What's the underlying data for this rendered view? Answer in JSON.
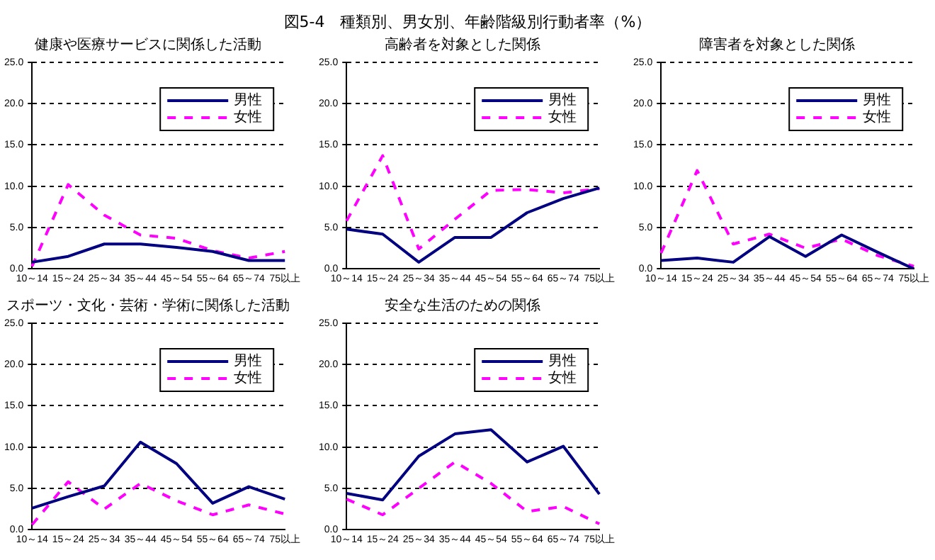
{
  "chart_data": [
    {
      "type": "line",
      "title": "健康や医療サービスに関係した活動",
      "annotations": [
        "図5-4　種類別、男女別、年齢階級別行動者率（%）"
      ],
      "categories": [
        "10～14",
        "15～24",
        "25～34",
        "35～44",
        "45～54",
        "55～64",
        "65～74",
        "75以上"
      ],
      "ylim": [
        0,
        25
      ],
      "yticks": [
        {
          "value": 0,
          "label": "0.0"
        },
        {
          "value": 5,
          "label": "5.0"
        },
        {
          "value": 10,
          "label": "10.0"
        },
        {
          "value": 15,
          "label": "15.0"
        },
        {
          "value": 20,
          "label": "20.0"
        },
        {
          "value": 25,
          "label": "25.0"
        }
      ],
      "grid": "y",
      "legend": "top right",
      "marker": "none",
      "series": [
        {
          "name": "男性",
          "color": "#000080",
          "line_style": "solid",
          "values": [
            0.8,
            1.5,
            3.0,
            3.0,
            2.6,
            2.1,
            1.0,
            1.0
          ]
        },
        {
          "name": "女性",
          "color": "#ff00ff",
          "line_style": "dashed",
          "values": [
            0.3,
            10.2,
            6.5,
            4.1,
            3.7,
            2.2,
            1.3,
            2.1
          ]
        }
      ]
    },
    {
      "type": "line",
      "title": "高齢者を対象とした関係",
      "categories": [
        "10～14",
        "15～24",
        "25～34",
        "35～44",
        "45～54",
        "55～64",
        "65～74",
        "75以上"
      ],
      "ylim": [
        0,
        25
      ],
      "yticks": [
        {
          "value": 0,
          "label": "0.0"
        },
        {
          "value": 5,
          "label": "5.0"
        },
        {
          "value": 10,
          "label": "10.0"
        },
        {
          "value": 15,
          "label": "15.0"
        },
        {
          "value": 20,
          "label": "20.0"
        },
        {
          "value": 25,
          "label": "25.0"
        }
      ],
      "grid": "y",
      "legend": "top right",
      "marker": "none",
      "series": [
        {
          "name": "男性",
          "color": "#000080",
          "line_style": "solid",
          "values": [
            4.8,
            4.2,
            0.8,
            3.8,
            3.8,
            6.8,
            8.5,
            9.8
          ]
        },
        {
          "name": "女性",
          "color": "#ff00ff",
          "line_style": "dashed",
          "values": [
            5.8,
            13.7,
            2.4,
            6.0,
            9.5,
            9.6,
            9.2,
            9.7
          ]
        }
      ]
    },
    {
      "type": "line",
      "title": "障害者を対象とした関係",
      "categories": [
        "10～14",
        "15～24",
        "25～34",
        "35～44",
        "45～54",
        "55～64",
        "65～74",
        "75以上"
      ],
      "ylim": [
        0,
        25
      ],
      "yticks": [
        {
          "value": 0,
          "label": "0.0"
        },
        {
          "value": 5,
          "label": "5.0"
        },
        {
          "value": 10,
          "label": "10.0"
        },
        {
          "value": 15,
          "label": "15.0"
        },
        {
          "value": 20,
          "label": "20.0"
        },
        {
          "value": 25,
          "label": "25.0"
        }
      ],
      "grid": "y",
      "legend": "top right",
      "marker": "none",
      "series": [
        {
          "name": "男性",
          "color": "#000080",
          "line_style": "solid",
          "values": [
            1.0,
            1.3,
            0.8,
            3.9,
            1.5,
            4.1,
            2.0,
            0.0
          ]
        },
        {
          "name": "女性",
          "color": "#ff00ff",
          "line_style": "dashed",
          "values": [
            1.9,
            11.9,
            3.0,
            4.2,
            2.5,
            3.6,
            1.6,
            0.3
          ]
        }
      ]
    },
    {
      "type": "line",
      "title": "スポーツ・文化・芸術・学術に関係した活動",
      "categories": [
        "10～14",
        "15～24",
        "25～34",
        "35～44",
        "45～54",
        "55～64",
        "65～74",
        "75以上"
      ],
      "ylim": [
        0,
        25
      ],
      "yticks": [
        {
          "value": 0,
          "label": "0.0"
        },
        {
          "value": 5,
          "label": "5.0"
        },
        {
          "value": 10,
          "label": "10.0"
        },
        {
          "value": 15,
          "label": "15.0"
        },
        {
          "value": 20,
          "label": "20.0"
        },
        {
          "value": 25,
          "label": "25.0"
        }
      ],
      "grid": "y",
      "legend": "top right",
      "marker": "none",
      "series": [
        {
          "name": "男性",
          "color": "#000080",
          "line_style": "solid",
          "values": [
            2.6,
            4.0,
            5.3,
            10.6,
            8.0,
            3.2,
            5.2,
            3.7
          ]
        },
        {
          "name": "女性",
          "color": "#ff00ff",
          "line_style": "dashed",
          "values": [
            0.6,
            5.8,
            2.5,
            5.6,
            3.5,
            1.8,
            3.0,
            1.9
          ]
        }
      ]
    },
    {
      "type": "line",
      "title": "安全な生活のための関係",
      "categories": [
        "10～14",
        "15～24",
        "25～34",
        "35～44",
        "45～54",
        "55～64",
        "65～74",
        "75以上"
      ],
      "ylim": [
        0,
        25
      ],
      "yticks": [
        {
          "value": 0,
          "label": "0.0"
        },
        {
          "value": 5,
          "label": "5.0"
        },
        {
          "value": 10,
          "label": "10.0"
        },
        {
          "value": 15,
          "label": "15.0"
        },
        {
          "value": 20,
          "label": "20.0"
        },
        {
          "value": 25,
          "label": "25.0"
        }
      ],
      "grid": "y",
      "legend": "top right",
      "marker": "none",
      "series": [
        {
          "name": "男性",
          "color": "#000080",
          "line_style": "solid",
          "values": [
            4.4,
            3.6,
            8.9,
            11.6,
            12.1,
            8.2,
            10.1,
            4.3
          ]
        },
        {
          "name": "女性",
          "color": "#ff00ff",
          "line_style": "dashed",
          "values": [
            3.7,
            1.8,
            5.0,
            8.2,
            5.6,
            2.2,
            2.8,
            0.7
          ]
        }
      ]
    }
  ]
}
